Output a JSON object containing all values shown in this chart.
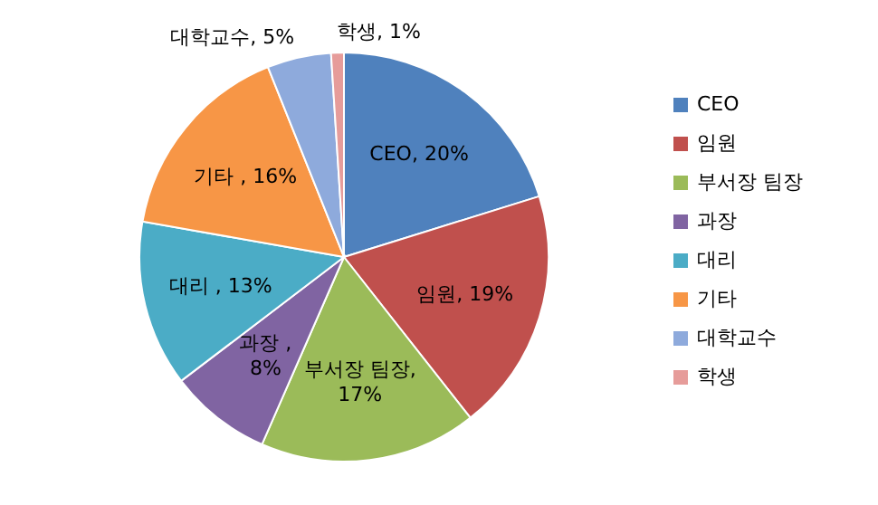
{
  "chart_data": {
    "type": "pie",
    "categories": [
      "CEO",
      "임원",
      "부서장 팀장",
      "과장",
      "대리",
      "기타",
      "대학교수",
      "학생"
    ],
    "values": [
      20,
      19,
      17,
      8,
      13,
      16,
      5,
      1
    ],
    "colors": [
      "#4f81bd",
      "#c0504d",
      "#9bbb59",
      "#8064a2",
      "#4bacc6",
      "#f79646",
      "#8eaadc",
      "#e69c9a"
    ],
    "value_labels": [
      "CEO, 20%",
      "임원, 19%",
      "부서장 팀장, 17%",
      "과장 , 8%",
      "대리 , 13%",
      "기타 , 16%",
      "대학교수, 5%",
      "학생, 1%"
    ],
    "legend": "right"
  }
}
